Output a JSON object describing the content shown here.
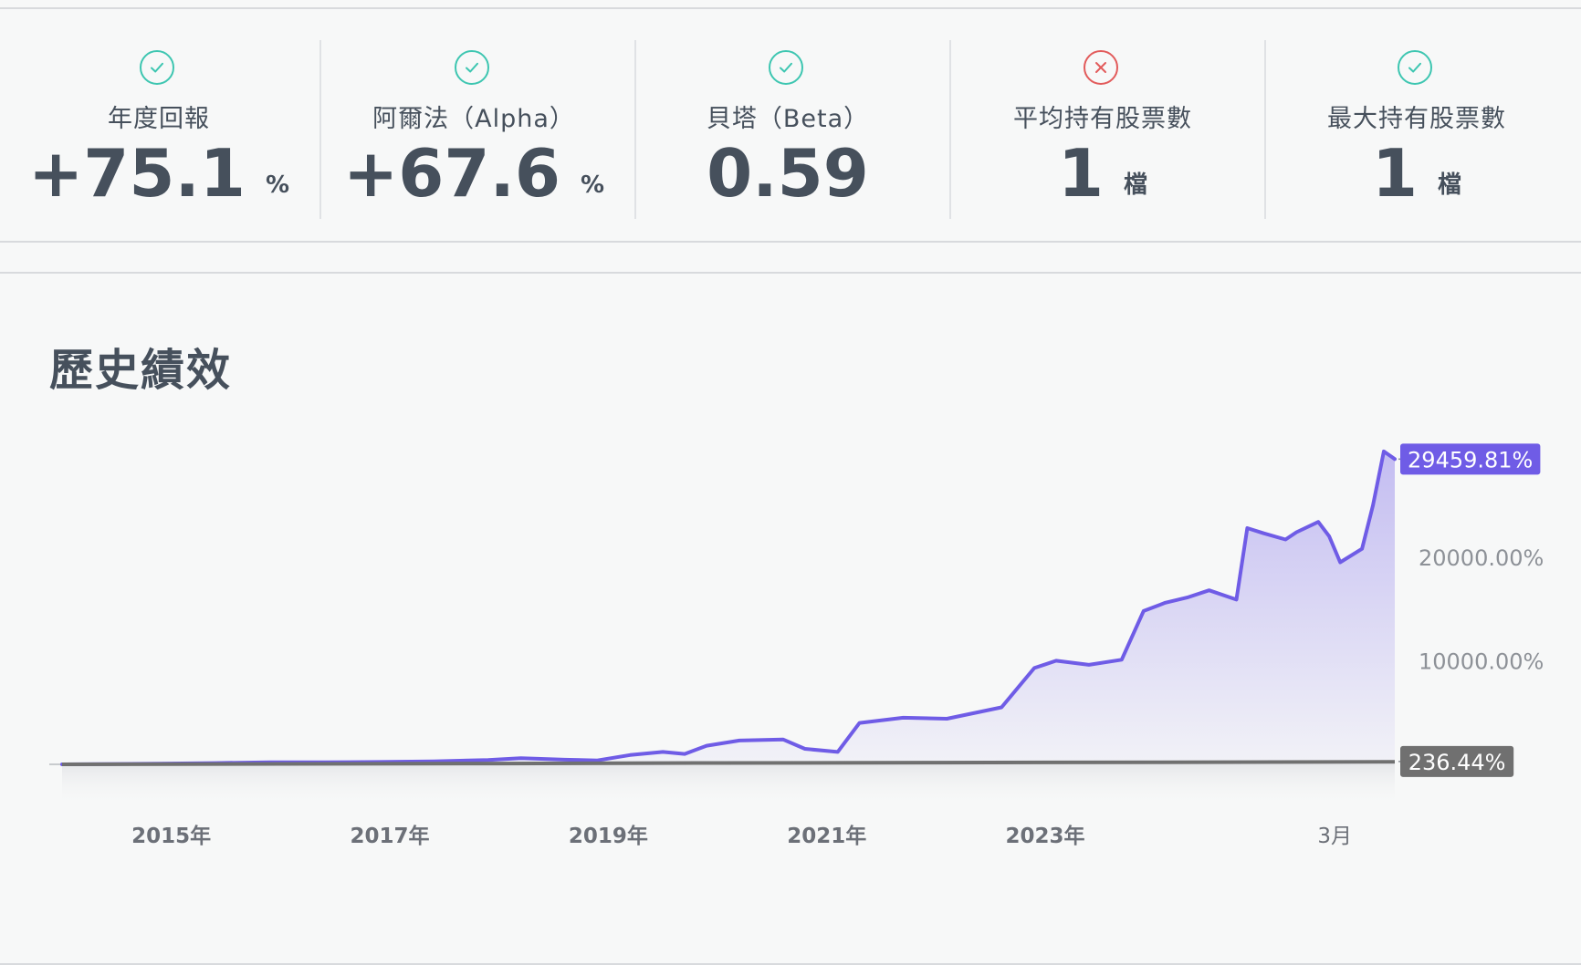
{
  "stats": [
    {
      "status": "ok",
      "icon": "check-icon",
      "title": "年度回報",
      "value": "+75.1",
      "unit": "%"
    },
    {
      "status": "ok",
      "icon": "check-icon",
      "title": "阿爾法（Alpha）",
      "value": "+67.6",
      "unit": "%"
    },
    {
      "status": "ok",
      "icon": "check-icon",
      "title": "貝塔（Beta）",
      "value": "0.59",
      "unit": ""
    },
    {
      "status": "bad",
      "icon": "x-icon",
      "title": "平均持有股票數",
      "value": "1",
      "unit": "檔"
    },
    {
      "status": "ok",
      "icon": "check-icon",
      "title": "最大持有股票數",
      "value": "1",
      "unit": "檔"
    }
  ],
  "chart": {
    "title": "歷史績效",
    "y_ticks": [
      "10000.00%",
      "20000.00%"
    ],
    "x_ticks": [
      "2015年",
      "2017年",
      "2019年",
      "2021年",
      "2023年",
      "3月"
    ],
    "strategy_label": "29459.81%",
    "benchmark_label": "236.44%"
  },
  "colors": {
    "accent": "#6f5ce6",
    "benchmark": "#707070",
    "ok": "#3ec6b1",
    "bad": "#e25b5b"
  },
  "chart_data": {
    "type": "area",
    "title": "歷史績效",
    "xlabel": "",
    "ylabel": "",
    "x_ticks": [
      "2015年",
      "2017年",
      "2019年",
      "2021年",
      "2023年",
      "3月"
    ],
    "y_ticks": [
      10000,
      20000
    ],
    "y_unit": "%",
    "grid": false,
    "series": [
      {
        "color": "#6f5ce6",
        "last_value_label": "29459.81%",
        "points": [
          [
            2014.0,
            0
          ],
          [
            2014.9,
            60
          ],
          [
            2015.4,
            120
          ],
          [
            2015.9,
            200
          ],
          [
            2016.4,
            190
          ],
          [
            2016.9,
            230
          ],
          [
            2017.4,
            280
          ],
          [
            2017.9,
            420
          ],
          [
            2018.2,
            600
          ],
          [
            2018.6,
            450
          ],
          [
            2018.9,
            380
          ],
          [
            2019.2,
            900
          ],
          [
            2019.5,
            1200
          ],
          [
            2019.7,
            1000
          ],
          [
            2019.9,
            1800
          ],
          [
            2020.2,
            2300
          ],
          [
            2020.6,
            2400
          ],
          [
            2020.8,
            1500
          ],
          [
            2021.1,
            1200
          ],
          [
            2021.3,
            4000
          ],
          [
            2021.7,
            4500
          ],
          [
            2022.1,
            4400
          ],
          [
            2022.6,
            5500
          ],
          [
            2022.9,
            9300
          ],
          [
            2023.1,
            10000
          ],
          [
            2023.4,
            9600
          ],
          [
            2023.7,
            10100
          ],
          [
            2023.9,
            14800
          ],
          [
            2024.1,
            15600
          ],
          [
            2024.3,
            16100
          ],
          [
            2024.5,
            16800
          ],
          [
            2024.75,
            15900
          ],
          [
            2024.85,
            22800
          ],
          [
            2025.0,
            22300
          ],
          [
            2025.2,
            21700
          ],
          [
            2025.3,
            22400
          ],
          [
            2025.5,
            23400
          ],
          [
            2025.6,
            22000
          ],
          [
            2025.7,
            19500
          ],
          [
            2025.9,
            20800
          ],
          [
            2026.0,
            25000
          ],
          [
            2026.1,
            30200
          ],
          [
            2026.2,
            29460
          ]
        ]
      },
      {
        "color": "#707070",
        "last_value_label": "236.44%",
        "points": [
          [
            2014.0,
            0
          ],
          [
            2016.0,
            40
          ],
          [
            2018.0,
            80
          ],
          [
            2020.0,
            130
          ],
          [
            2022.0,
            170
          ],
          [
            2024.0,
            200
          ],
          [
            2026.2,
            236.44
          ]
        ]
      }
    ]
  }
}
